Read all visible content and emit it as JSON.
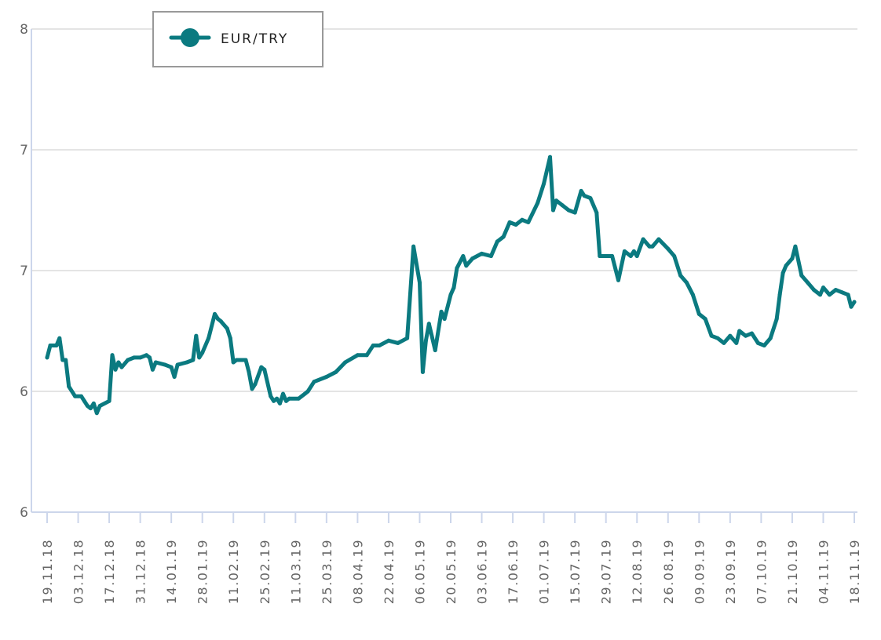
{
  "colors": {
    "series": "#0b7a80",
    "gridline": "#e4e4e4",
    "axis": "#ccd6eb",
    "legend_border": "#999999"
  },
  "legend": {
    "placement": "top-left",
    "label": "EUR/TRY",
    "marker_icon": "line-circle-marker-icon"
  },
  "chart_data": {
    "type": "line",
    "title": "",
    "xlabel": "",
    "ylabel": "",
    "grid": true,
    "legend": "top-left",
    "ylim": [
      5.5,
      7.5
    ],
    "y_ticks": [
      {
        "value": 5.5,
        "label": "6"
      },
      {
        "value": 6.0,
        "label": "6"
      },
      {
        "value": 6.5,
        "label": "7"
      },
      {
        "value": 7.0,
        "label": "7"
      },
      {
        "value": 7.5,
        "label": "8"
      }
    ],
    "x_ticks": [
      "19.11.18",
      "03.12.18",
      "17.12.18",
      "31.12.18",
      "14.01.19",
      "28.01.19",
      "11.02.19",
      "25.02.19",
      "11.03.19",
      "25.03.19",
      "08.04.19",
      "22.04.19",
      "06.05.19",
      "20.05.19",
      "03.06.19",
      "17.06.19",
      "01.07.19",
      "15.07.19",
      "29.07.19",
      "12.08.19",
      "26.08.19",
      "09.09.19",
      "23.09.19",
      "07.10.19",
      "21.10.19",
      "04.11.19",
      "18.11.19"
    ],
    "series": [
      {
        "name": "EUR/TRY",
        "points": [
          [
            0,
            6.14
          ],
          [
            0.1,
            6.19
          ],
          [
            0.3,
            6.19
          ],
          [
            0.4,
            6.22
          ],
          [
            0.5,
            6.13
          ],
          [
            0.6,
            6.13
          ],
          [
            0.7,
            6.02
          ],
          [
            0.9,
            5.98
          ],
          [
            1.1,
            5.98
          ],
          [
            1.2,
            5.96
          ],
          [
            1.3,
            5.94
          ],
          [
            1.4,
            5.93
          ],
          [
            1.5,
            5.95
          ],
          [
            1.6,
            5.91
          ],
          [
            1.7,
            5.94
          ],
          [
            2.0,
            5.96
          ],
          [
            2.1,
            6.15
          ],
          [
            2.2,
            6.09
          ],
          [
            2.3,
            6.12
          ],
          [
            2.4,
            6.1
          ],
          [
            2.6,
            6.13
          ],
          [
            2.8,
            6.14
          ],
          [
            3.0,
            6.14
          ],
          [
            3.2,
            6.15
          ],
          [
            3.3,
            6.14
          ],
          [
            3.4,
            6.09
          ],
          [
            3.5,
            6.12
          ],
          [
            3.8,
            6.11
          ],
          [
            4.0,
            6.1
          ],
          [
            4.1,
            6.06
          ],
          [
            4.2,
            6.11
          ],
          [
            4.5,
            6.12
          ],
          [
            4.7,
            6.13
          ],
          [
            4.8,
            6.23
          ],
          [
            4.9,
            6.14
          ],
          [
            5.0,
            6.16
          ],
          [
            5.2,
            6.22
          ],
          [
            5.4,
            6.32
          ],
          [
            5.5,
            6.3
          ],
          [
            5.6,
            6.29
          ],
          [
            5.8,
            6.26
          ],
          [
            5.9,
            6.22
          ],
          [
            6.0,
            6.12
          ],
          [
            6.1,
            6.13
          ],
          [
            6.4,
            6.13
          ],
          [
            6.5,
            6.08
          ],
          [
            6.6,
            6.01
          ],
          [
            6.7,
            6.03
          ],
          [
            6.9,
            6.1
          ],
          [
            7.0,
            6.09
          ],
          [
            7.2,
            5.98
          ],
          [
            7.3,
            5.96
          ],
          [
            7.4,
            5.97
          ],
          [
            7.5,
            5.95
          ],
          [
            7.6,
            5.99
          ],
          [
            7.7,
            5.96
          ],
          [
            7.8,
            5.97
          ],
          [
            8.1,
            5.97
          ],
          [
            8.3,
            5.99
          ],
          [
            8.4,
            6.0
          ],
          [
            8.6,
            6.04
          ],
          [
            9.0,
            6.06
          ],
          [
            9.3,
            6.08
          ],
          [
            9.6,
            6.12
          ],
          [
            10.0,
            6.15
          ],
          [
            10.3,
            6.15
          ],
          [
            10.5,
            6.19
          ],
          [
            10.7,
            6.19
          ],
          [
            11.0,
            6.21
          ],
          [
            11.3,
            6.2
          ],
          [
            11.6,
            6.22
          ],
          [
            11.8,
            6.6
          ],
          [
            12.0,
            6.45
          ],
          [
            12.1,
            6.08
          ],
          [
            12.2,
            6.21
          ],
          [
            12.3,
            6.28
          ],
          [
            12.5,
            6.17
          ],
          [
            12.7,
            6.33
          ],
          [
            12.8,
            6.3
          ],
          [
            13.0,
            6.4
          ],
          [
            13.1,
            6.43
          ],
          [
            13.2,
            6.51
          ],
          [
            13.4,
            6.56
          ],
          [
            13.5,
            6.52
          ],
          [
            13.7,
            6.55
          ],
          [
            14.0,
            6.57
          ],
          [
            14.3,
            6.56
          ],
          [
            14.5,
            6.62
          ],
          [
            14.7,
            6.64
          ],
          [
            14.9,
            6.7
          ],
          [
            15.1,
            6.69
          ],
          [
            15.3,
            6.71
          ],
          [
            15.5,
            6.7
          ],
          [
            15.8,
            6.78
          ],
          [
            16.0,
            6.86
          ],
          [
            16.2,
            6.97
          ],
          [
            16.3,
            6.75
          ],
          [
            16.4,
            6.79
          ],
          [
            16.6,
            6.77
          ],
          [
            16.8,
            6.75
          ],
          [
            17.0,
            6.74
          ],
          [
            17.2,
            6.83
          ],
          [
            17.3,
            6.81
          ],
          [
            17.5,
            6.8
          ],
          [
            17.7,
            6.74
          ],
          [
            17.8,
            6.56
          ],
          [
            18.0,
            6.56
          ],
          [
            18.2,
            6.56
          ],
          [
            18.4,
            6.46
          ],
          [
            18.6,
            6.58
          ],
          [
            18.8,
            6.56
          ],
          [
            18.9,
            6.58
          ],
          [
            19.0,
            6.56
          ],
          [
            19.2,
            6.63
          ],
          [
            19.4,
            6.6
          ],
          [
            19.5,
            6.6
          ],
          [
            19.7,
            6.63
          ],
          [
            20.0,
            6.59
          ],
          [
            20.2,
            6.56
          ],
          [
            20.4,
            6.48
          ],
          [
            20.6,
            6.45
          ],
          [
            20.8,
            6.4
          ],
          [
            21.0,
            6.32
          ],
          [
            21.2,
            6.3
          ],
          [
            21.4,
            6.23
          ],
          [
            21.6,
            6.22
          ],
          [
            21.8,
            6.2
          ],
          [
            22.0,
            6.23
          ],
          [
            22.2,
            6.2
          ],
          [
            22.3,
            6.25
          ],
          [
            22.5,
            6.23
          ],
          [
            22.7,
            6.24
          ],
          [
            22.9,
            6.2
          ],
          [
            23.1,
            6.19
          ],
          [
            23.3,
            6.22
          ],
          [
            23.5,
            6.3
          ],
          [
            23.6,
            6.4
          ],
          [
            23.7,
            6.49
          ],
          [
            23.8,
            6.52
          ],
          [
            24.0,
            6.55
          ],
          [
            24.1,
            6.6
          ],
          [
            24.3,
            6.48
          ],
          [
            24.5,
            6.45
          ],
          [
            24.7,
            6.42
          ],
          [
            24.9,
            6.4
          ],
          [
            25.0,
            6.43
          ],
          [
            25.2,
            6.4
          ],
          [
            25.4,
            6.42
          ],
          [
            25.6,
            6.41
          ],
          [
            25.8,
            6.4
          ],
          [
            25.9,
            6.35
          ],
          [
            26.0,
            6.37
          ]
        ]
      }
    ]
  }
}
